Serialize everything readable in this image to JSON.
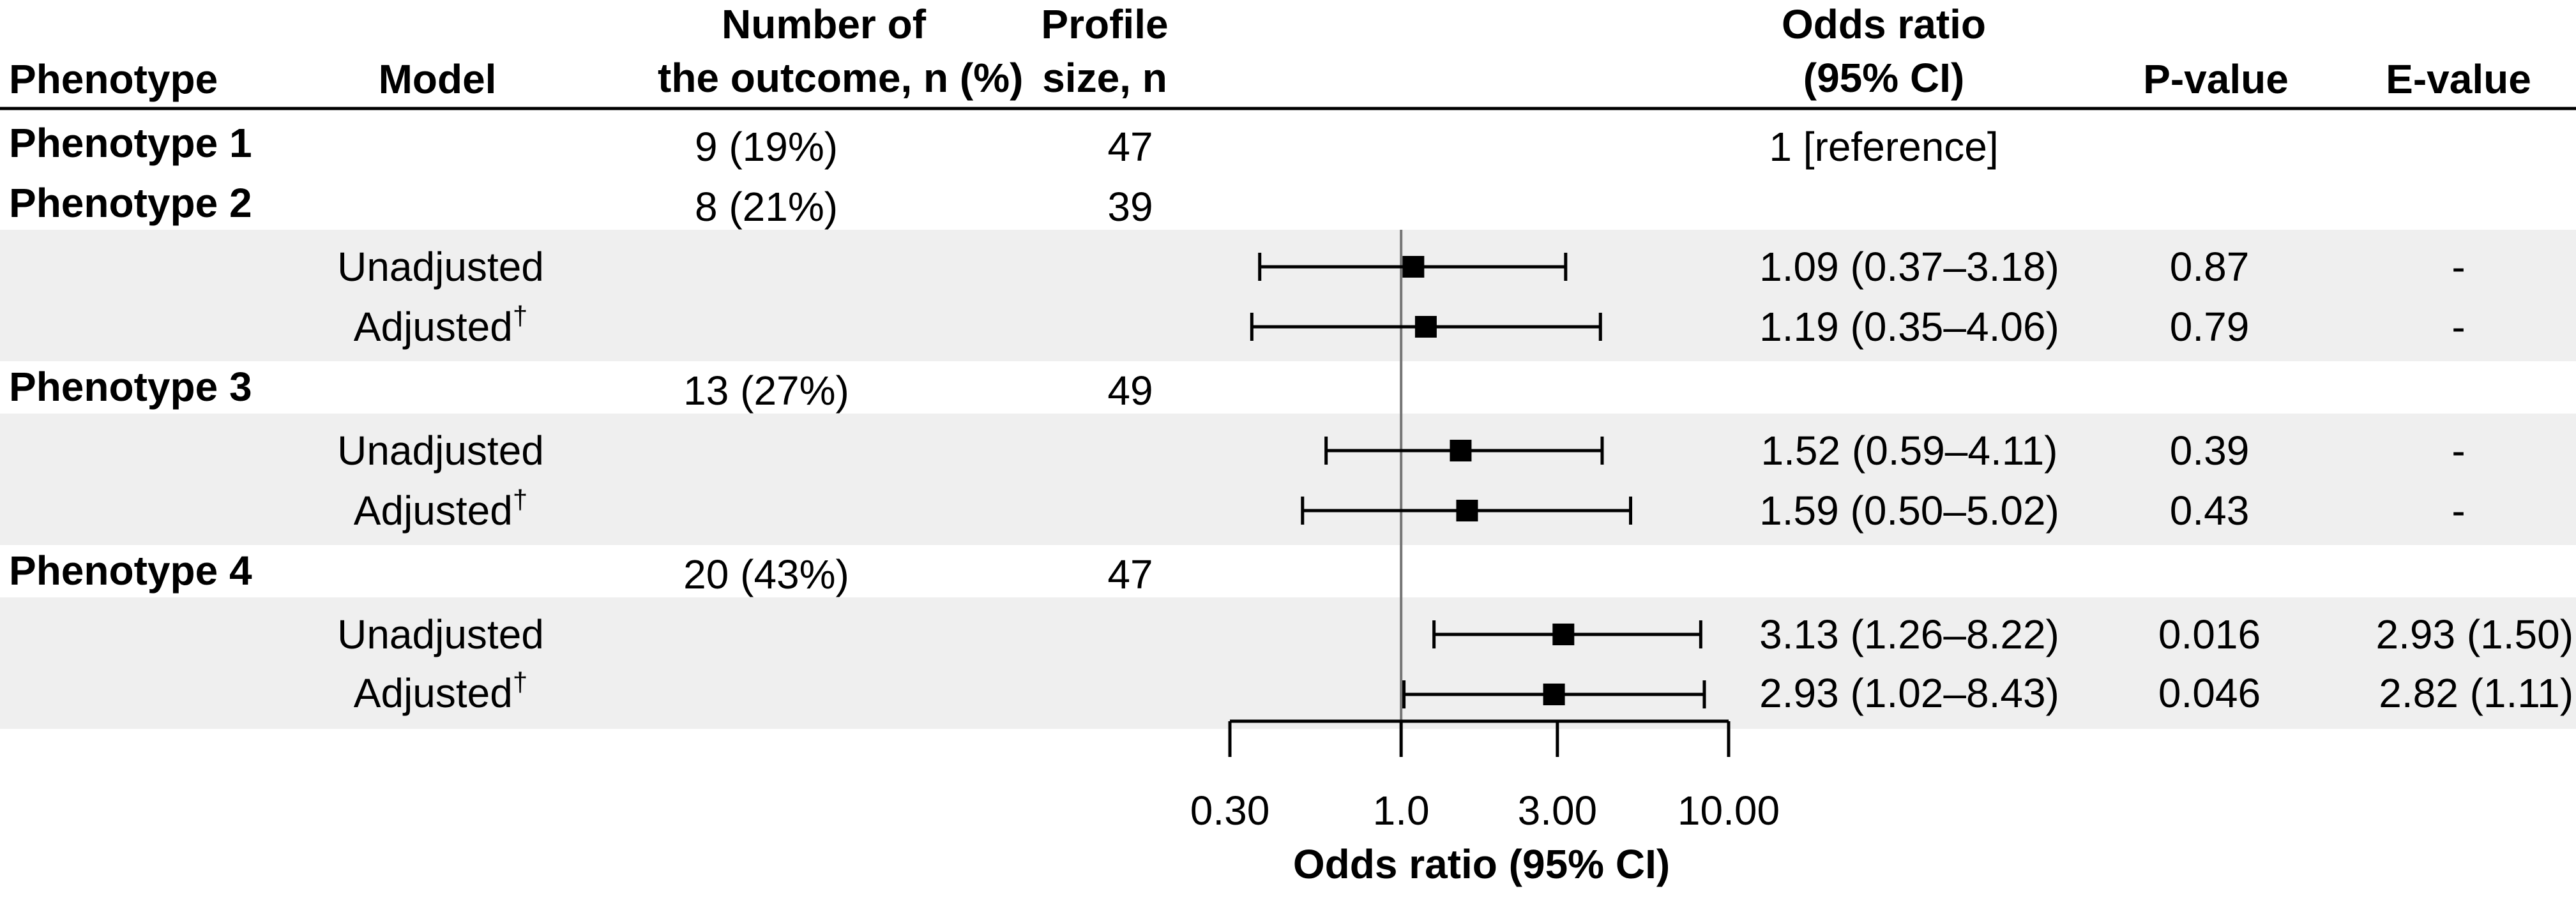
{
  "header": {
    "phenotype": "Phenotype",
    "model": "Model",
    "outcome_line1": "Number of",
    "outcome_line2": "the outcome, n (%)",
    "profile_line1": "Profile",
    "profile_line2": "size, n",
    "or_line1": "Odds ratio",
    "or_line2": "(95% CI)",
    "pvalue": "P-value",
    "evalue": "E-value"
  },
  "groups": [
    {
      "name": "Phenotype 1",
      "outcome": "9 (19%)",
      "size": "47",
      "reference": "1 [reference]"
    },
    {
      "name": "Phenotype 2",
      "outcome": "8 (21%)",
      "size": "39",
      "models": [
        {
          "model": "Unadjusted",
          "dagger": "",
          "or_text": "1.09 (0.37–3.18)",
          "p": "0.87",
          "e": "-"
        },
        {
          "model": "Adjusted",
          "dagger": "†",
          "or_text": "1.19 (0.35–4.06)",
          "p": "0.79",
          "e": "-"
        }
      ]
    },
    {
      "name": "Phenotype 3",
      "outcome": "13 (27%)",
      "size": "49",
      "models": [
        {
          "model": "Unadjusted",
          "dagger": "",
          "or_text": "1.52 (0.59–4.11)",
          "p": "0.39",
          "e": "-"
        },
        {
          "model": "Adjusted",
          "dagger": "†",
          "or_text": "1.59 (0.50–5.02)",
          "p": "0.43",
          "e": "-"
        }
      ]
    },
    {
      "name": "Phenotype 4",
      "outcome": "20 (43%)",
      "size": "47",
      "models": [
        {
          "model": "Unadjusted",
          "dagger": "",
          "or_text": "3.13 (1.26–8.22)",
          "p": "0.016",
          "e": "2.93 (1.50)"
        },
        {
          "model": "Adjusted",
          "dagger": "†",
          "or_text": "2.93 (1.02–8.43)",
          "p": "0.046",
          "e": "2.82 (1.11)"
        }
      ]
    }
  ],
  "chart_data": {
    "type": "forest",
    "scale": "log",
    "xlabel": "Odds ratio (95% CI)",
    "xlim": [
      0.3,
      10
    ],
    "ticks": [
      0.3,
      1,
      3,
      10
    ],
    "tick_labels": [
      "0.30",
      "1.0",
      "3.00",
      "10.00"
    ],
    "reference_line": 1,
    "series": [
      {
        "name": "Phenotype 2 Unadjusted",
        "or": 1.09,
        "lo": 0.37,
        "hi": 3.18
      },
      {
        "name": "Phenotype 2 Adjusted",
        "or": 1.19,
        "lo": 0.35,
        "hi": 4.06
      },
      {
        "name": "Phenotype 3 Unadjusted",
        "or": 1.52,
        "lo": 0.59,
        "hi": 4.11
      },
      {
        "name": "Phenotype 3 Adjusted",
        "or": 1.59,
        "lo": 0.5,
        "hi": 5.02
      },
      {
        "name": "Phenotype 4 Unadjusted",
        "or": 3.13,
        "lo": 1.26,
        "hi": 8.22
      },
      {
        "name": "Phenotype 4 Adjusted",
        "or": 2.93,
        "lo": 1.02,
        "hi": 8.43
      }
    ]
  }
}
